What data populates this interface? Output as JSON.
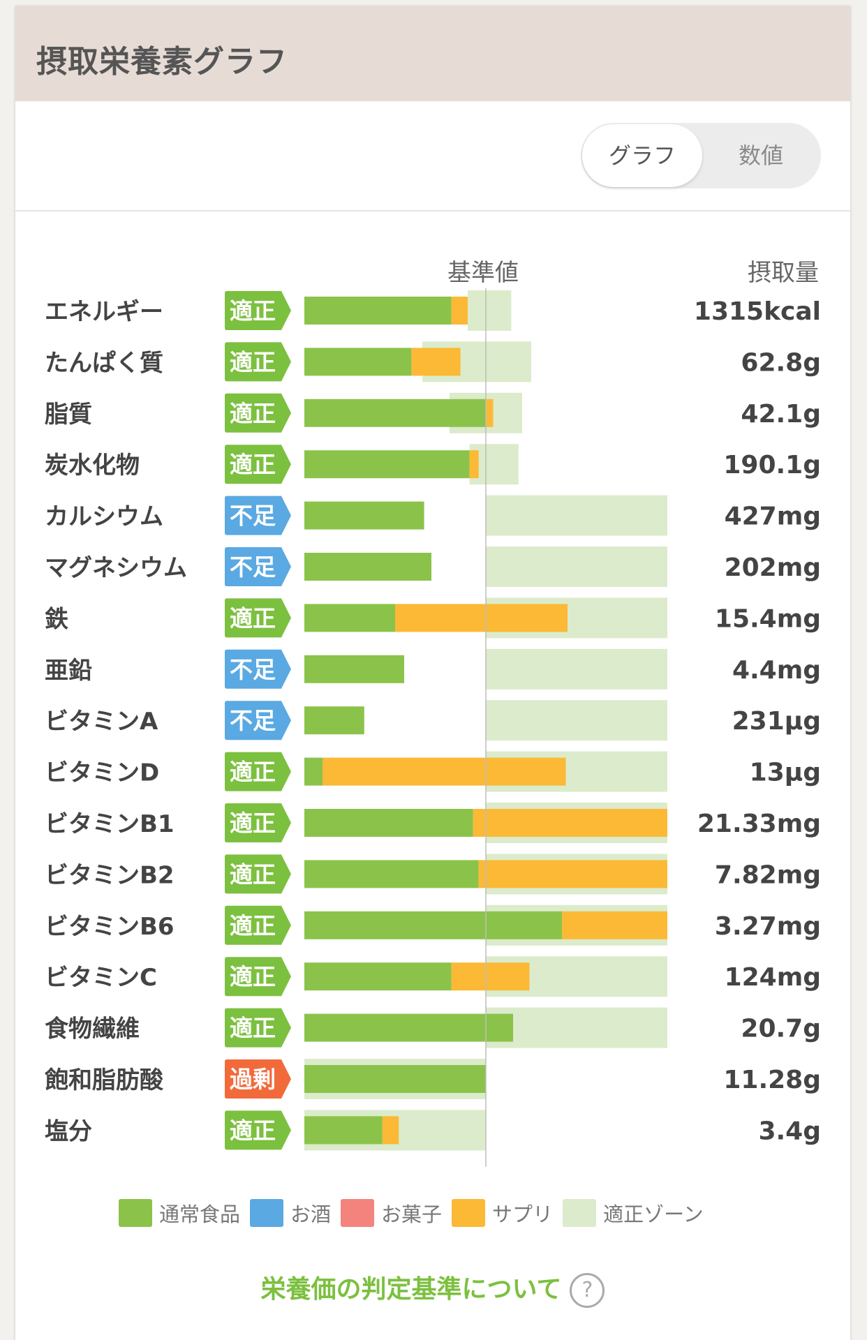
{
  "header": {
    "title": "摂取栄養素グラフ"
  },
  "toggle": {
    "graph_label": "グラフ",
    "number_label": "数値"
  },
  "columns": {
    "standard": "基準値",
    "intake": "摂取量"
  },
  "colors": {
    "normal_food": "#8bc34a",
    "alcohol": "#5aa9e2",
    "snack": "#f4837e",
    "supplement": "#fbb936",
    "proper_zone": "#dcebcb",
    "status_proper": "#7cc03f",
    "status_lack": "#5aa9e2",
    "status_excess": "#f26a3a"
  },
  "chart_data": {
    "type": "bar",
    "title": "摂取栄養素グラフ",
    "orientation": "horizontal",
    "stacked": true,
    "xlabel": "基準値 (%)",
    "ylabel": "",
    "xlim": [
      0,
      200
    ],
    "reference_line": 100,
    "series_names": [
      "通常食品",
      "サプリ"
    ],
    "categories": [
      "エネルギー",
      "たんぱく質",
      "脂質",
      "炭水化物",
      "カルシウム",
      "マグネシウム",
      "鉄",
      "亜鉛",
      "ビタミンA",
      "ビタミンD",
      "ビタミンB1",
      "ビタミンB2",
      "ビタミンB6",
      "ビタミンC",
      "食物繊維",
      "飽和脂肪酸",
      "塩分"
    ],
    "rows": [
      {
        "name": "エネルギー",
        "status": "適正",
        "status_type": "proper",
        "normal": 81,
        "supplement": 9,
        "zone": [
          90,
          114
        ],
        "intake": "1315kcal"
      },
      {
        "name": "たんぱく質",
        "status": "適正",
        "status_type": "proper",
        "normal": 59,
        "supplement": 27,
        "zone": [
          65,
          125
        ],
        "intake": "62.8g"
      },
      {
        "name": "脂質",
        "status": "適正",
        "status_type": "proper",
        "normal": 100,
        "supplement": 4,
        "zone": [
          80,
          120
        ],
        "intake": "42.1g"
      },
      {
        "name": "炭水化物",
        "status": "適正",
        "status_type": "proper",
        "normal": 91,
        "supplement": 5,
        "zone": [
          91,
          118
        ],
        "intake": "190.1g"
      },
      {
        "name": "カルシウム",
        "status": "不足",
        "status_type": "lack",
        "normal": 66,
        "supplement": 0,
        "zone": [
          100,
          200
        ],
        "intake": "427mg"
      },
      {
        "name": "マグネシウム",
        "status": "不足",
        "status_type": "lack",
        "normal": 70,
        "supplement": 0,
        "zone": [
          100,
          200
        ],
        "intake": "202mg"
      },
      {
        "name": "鉄",
        "status": "適正",
        "status_type": "proper",
        "normal": 50,
        "supplement": 95,
        "zone": [
          100,
          200
        ],
        "intake": "15.4mg"
      },
      {
        "name": "亜鉛",
        "status": "不足",
        "status_type": "lack",
        "normal": 55,
        "supplement": 0,
        "zone": [
          100,
          200
        ],
        "intake": "4.4mg"
      },
      {
        "name": "ビタミンA",
        "status": "不足",
        "status_type": "lack",
        "normal": 33,
        "supplement": 0,
        "zone": [
          100,
          200
        ],
        "intake": "231μg"
      },
      {
        "name": "ビタミンD",
        "status": "適正",
        "status_type": "proper",
        "normal": 10,
        "supplement": 134,
        "zone": [
          100,
          200
        ],
        "intake": "13μg"
      },
      {
        "name": "ビタミンB1",
        "status": "適正",
        "status_type": "proper",
        "normal": 93,
        "supplement": 107,
        "zone": [
          100,
          200
        ],
        "intake": "21.33mg"
      },
      {
        "name": "ビタミンB2",
        "status": "適正",
        "status_type": "proper",
        "normal": 96,
        "supplement": 104,
        "zone": [
          100,
          200
        ],
        "intake": "7.82mg"
      },
      {
        "name": "ビタミンB6",
        "status": "適正",
        "status_type": "proper",
        "normal": 142,
        "supplement": 58,
        "zone": [
          100,
          200
        ],
        "intake": "3.27mg"
      },
      {
        "name": "ビタミンC",
        "status": "適正",
        "status_type": "proper",
        "normal": 81,
        "supplement": 43,
        "zone": [
          100,
          200
        ],
        "intake": "124mg"
      },
      {
        "name": "食物繊維",
        "status": "適正",
        "status_type": "proper",
        "normal": 115,
        "supplement": 0,
        "zone": [
          100,
          200
        ],
        "intake": "20.7g"
      },
      {
        "name": "飽和脂肪酸",
        "status": "過剰",
        "status_type": "excess",
        "normal": 100,
        "supplement": 0,
        "zone": [
          0,
          100
        ],
        "intake": "11.28g"
      },
      {
        "name": "塩分",
        "status": "適正",
        "status_type": "proper",
        "normal": 43,
        "supplement": 9,
        "zone": [
          0,
          100
        ],
        "intake": "3.4g"
      }
    ]
  },
  "legend": [
    {
      "label": "通常食品",
      "color": "#8bc34a"
    },
    {
      "label": "お酒",
      "color": "#5aa9e2"
    },
    {
      "label": "お菓子",
      "color": "#f4837e"
    },
    {
      "label": "サプリ",
      "color": "#fbb936"
    },
    {
      "label": "適正ゾーン",
      "color": "#dcebcb"
    }
  ],
  "footer": {
    "link_text": "栄養価の判定基準について",
    "help_symbol": "?"
  }
}
